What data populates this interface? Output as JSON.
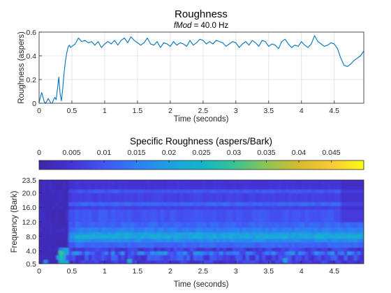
{
  "chart_data": [
    {
      "type": "line",
      "title": "Roughness",
      "subtitle_var": "fMod",
      "subtitle_rest": " = 40.0 Hz",
      "xlabel": "Time (seconds)",
      "ylabel": "Roughness (aspers)",
      "xlim": [
        0,
        4.95
      ],
      "ylim": [
        0,
        0.6
      ],
      "xticks": [
        "0",
        "0.5",
        "1",
        "1.5",
        "2",
        "2.5",
        "3",
        "3.5",
        "4",
        "4.5"
      ],
      "yticks": [
        "0",
        "0.2",
        "0.4",
        "0.6"
      ],
      "grid": true,
      "line_color": "#0072BD",
      "series": [
        {
          "x": [
            0,
            0.02,
            0.04,
            0.06,
            0.08,
            0.1,
            0.12,
            0.14,
            0.16,
            0.18,
            0.2,
            0.22,
            0.24,
            0.26,
            0.28,
            0.3,
            0.32,
            0.34,
            0.36,
            0.38,
            0.4,
            0.42,
            0.44,
            0.46,
            0.48,
            0.5,
            0.55,
            0.6,
            0.65,
            0.7,
            0.75,
            0.8,
            0.85,
            0.9,
            0.95,
            1.0,
            1.05,
            1.1,
            1.15,
            1.2,
            1.25,
            1.3,
            1.35,
            1.4,
            1.45,
            1.5,
            1.55,
            1.6,
            1.65,
            1.7,
            1.75,
            1.8,
            1.85,
            1.9,
            1.95,
            2.0,
            2.05,
            2.1,
            2.15,
            2.2,
            2.25,
            2.3,
            2.35,
            2.4,
            2.45,
            2.5,
            2.55,
            2.6,
            2.65,
            2.7,
            2.75,
            2.8,
            2.85,
            2.9,
            2.95,
            3.0,
            3.05,
            3.1,
            3.15,
            3.2,
            3.25,
            3.3,
            3.35,
            3.4,
            3.45,
            3.5,
            3.55,
            3.6,
            3.65,
            3.7,
            3.75,
            3.8,
            3.85,
            3.9,
            3.95,
            4.0,
            4.05,
            4.1,
            4.15,
            4.2,
            4.25,
            4.3,
            4.35,
            4.4,
            4.45,
            4.5,
            4.55,
            4.6,
            4.65,
            4.7,
            4.75,
            4.8,
            4.85,
            4.9,
            4.95
          ],
          "y": [
            0.01,
            0.05,
            0.09,
            0.05,
            0.01,
            0.0,
            0.02,
            0.04,
            0.02,
            0.0,
            0.0,
            0.03,
            0.05,
            0.03,
            0.12,
            0.22,
            0.08,
            0.02,
            0.12,
            0.25,
            0.35,
            0.42,
            0.47,
            0.49,
            0.47,
            0.48,
            0.5,
            0.55,
            0.52,
            0.53,
            0.51,
            0.52,
            0.49,
            0.52,
            0.47,
            0.5,
            0.52,
            0.5,
            0.53,
            0.49,
            0.53,
            0.55,
            0.51,
            0.56,
            0.53,
            0.51,
            0.49,
            0.51,
            0.55,
            0.5,
            0.49,
            0.52,
            0.47,
            0.51,
            0.5,
            0.48,
            0.52,
            0.49,
            0.51,
            0.5,
            0.48,
            0.53,
            0.49,
            0.51,
            0.54,
            0.53,
            0.5,
            0.52,
            0.5,
            0.53,
            0.52,
            0.51,
            0.48,
            0.5,
            0.52,
            0.51,
            0.47,
            0.5,
            0.52,
            0.49,
            0.53,
            0.51,
            0.48,
            0.53,
            0.52,
            0.48,
            0.5,
            0.49,
            0.46,
            0.52,
            0.54,
            0.5,
            0.47,
            0.49,
            0.48,
            0.52,
            0.49,
            0.47,
            0.5,
            0.57,
            0.52,
            0.5,
            0.48,
            0.49,
            0.51,
            0.5,
            0.46,
            0.38,
            0.32,
            0.31,
            0.33,
            0.36,
            0.38,
            0.4,
            0.44
          ]
        }
      ]
    },
    {
      "type": "heatmap",
      "title": "Specific Roughness (aspers/Bark)",
      "colorbar_ticks": [
        "0",
        "0.005",
        "0.01",
        "0.015",
        "0.02",
        "0.025",
        "0.03",
        "0.035",
        "0.04",
        "0.045"
      ],
      "clim": [
        0,
        0.05
      ],
      "colormap": "parula",
      "xlabel": "Time (seconds)",
      "ylabel": "Frequency (Bark)",
      "xlim": [
        0,
        4.95
      ],
      "ylim": [
        0.5,
        23.5
      ],
      "xticks": [
        "0",
        "0.5",
        "1",
        "1.5",
        "2",
        "2.5",
        "3",
        "3.5",
        "4",
        "4.5"
      ],
      "yticks": [
        "0.5",
        "4.0",
        "8.0",
        "12.0",
        "16.0",
        "20.0",
        "23.5"
      ],
      "bands": [
        {
          "y": [
            0.5,
            1.5
          ],
          "value": 0.006
        },
        {
          "y": [
            1.5,
            3.0
          ],
          "value": 0.008
        },
        {
          "y": [
            3.0,
            4.0
          ],
          "value": 0.013
        },
        {
          "y": [
            4.0,
            5.0
          ],
          "value": 0.006
        },
        {
          "y": [
            5.0,
            6.5
          ],
          "value": 0.012
        },
        {
          "y": [
            6.5,
            7.5
          ],
          "value": 0.017
        },
        {
          "y": [
            7.5,
            8.5
          ],
          "value": 0.022
        },
        {
          "y": [
            8.5,
            9.2
          ],
          "value": 0.02
        },
        {
          "y": [
            9.2,
            10.5
          ],
          "value": 0.015
        },
        {
          "y": [
            10.5,
            12.0
          ],
          "value": 0.012
        },
        {
          "y": [
            12.0,
            15.5
          ],
          "value": 0.01
        },
        {
          "y": [
            15.5,
            16.5
          ],
          "value": 0.007
        },
        {
          "y": [
            16.5,
            17.5
          ],
          "value": 0.012
        },
        {
          "y": [
            17.5,
            20.0
          ],
          "value": 0.007
        },
        {
          "y": [
            20.0,
            21.0
          ],
          "value": 0.01
        },
        {
          "y": [
            21.0,
            23.5
          ],
          "value": 0.005
        }
      ]
    }
  ]
}
